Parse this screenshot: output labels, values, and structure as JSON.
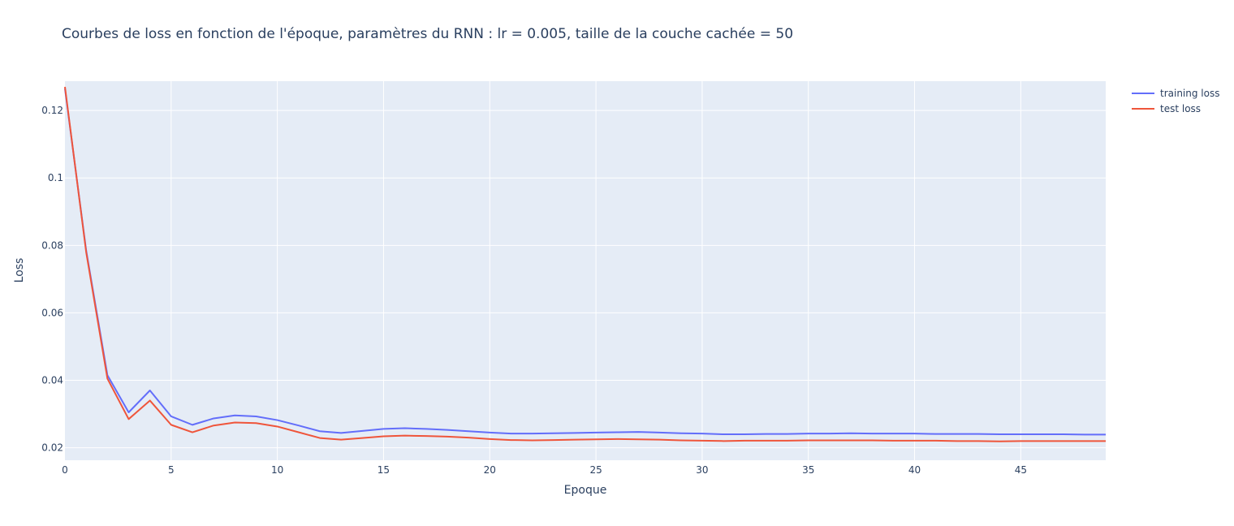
{
  "chart_data": {
    "type": "line",
    "title": "Courbes de loss en fonction de l'époque, paramètres du RNN : lr = 0.005, taille de la couche cachée = 50",
    "xlabel": "Epoque",
    "ylabel": "Loss",
    "xlim": [
      0,
      49
    ],
    "ylim": [
      0.0163,
      0.1287
    ],
    "xticks": [
      0,
      5,
      10,
      15,
      20,
      25,
      30,
      35,
      40,
      45
    ],
    "yticks": [
      0.02,
      0.04,
      0.06,
      0.08,
      0.1,
      0.12
    ],
    "ytick_labels": [
      "0.02",
      "0.04",
      "0.06",
      "0.08",
      "0.1",
      "0.12"
    ],
    "grid": true,
    "legend_position": "top-right",
    "x": [
      0,
      1,
      2,
      3,
      4,
      5,
      6,
      7,
      8,
      9,
      10,
      11,
      12,
      13,
      14,
      15,
      16,
      17,
      18,
      19,
      20,
      21,
      22,
      23,
      24,
      25,
      26,
      27,
      28,
      29,
      30,
      31,
      32,
      33,
      34,
      35,
      36,
      37,
      38,
      39,
      40,
      41,
      42,
      43,
      44,
      45,
      46,
      47,
      48,
      49
    ],
    "series": [
      {
        "name": "training loss",
        "color": "#636efa",
        "values": [
          0.1265,
          0.0785,
          0.0415,
          0.0305,
          0.037,
          0.0293,
          0.0268,
          0.0287,
          0.0296,
          0.0293,
          0.0282,
          0.0266,
          0.0249,
          0.0244,
          0.025,
          0.0256,
          0.0258,
          0.0256,
          0.0253,
          0.0249,
          0.0245,
          0.0242,
          0.0242,
          0.0243,
          0.0244,
          0.0245,
          0.0246,
          0.0247,
          0.0245,
          0.0243,
          0.0242,
          0.024,
          0.024,
          0.0241,
          0.0241,
          0.0242,
          0.0242,
          0.0243,
          0.0242,
          0.0242,
          0.0242,
          0.0241,
          0.0241,
          0.0241,
          0.024,
          0.024,
          0.024,
          0.024,
          0.0239,
          0.0239
        ]
      },
      {
        "name": "test loss",
        "color": "#ef553b",
        "values": [
          0.127,
          0.078,
          0.0405,
          0.0285,
          0.034,
          0.0268,
          0.0246,
          0.0266,
          0.0275,
          0.0273,
          0.0263,
          0.0246,
          0.0229,
          0.0224,
          0.0229,
          0.0234,
          0.0236,
          0.0235,
          0.0233,
          0.023,
          0.0226,
          0.0223,
          0.0222,
          0.0223,
          0.0224,
          0.0225,
          0.0226,
          0.0225,
          0.0224,
          0.0222,
          0.0221,
          0.022,
          0.0221,
          0.0221,
          0.0221,
          0.0222,
          0.0222,
          0.0222,
          0.0222,
          0.0221,
          0.0221,
          0.0221,
          0.022,
          0.022,
          0.0219,
          0.022,
          0.022,
          0.022,
          0.022,
          0.022
        ]
      }
    ]
  }
}
